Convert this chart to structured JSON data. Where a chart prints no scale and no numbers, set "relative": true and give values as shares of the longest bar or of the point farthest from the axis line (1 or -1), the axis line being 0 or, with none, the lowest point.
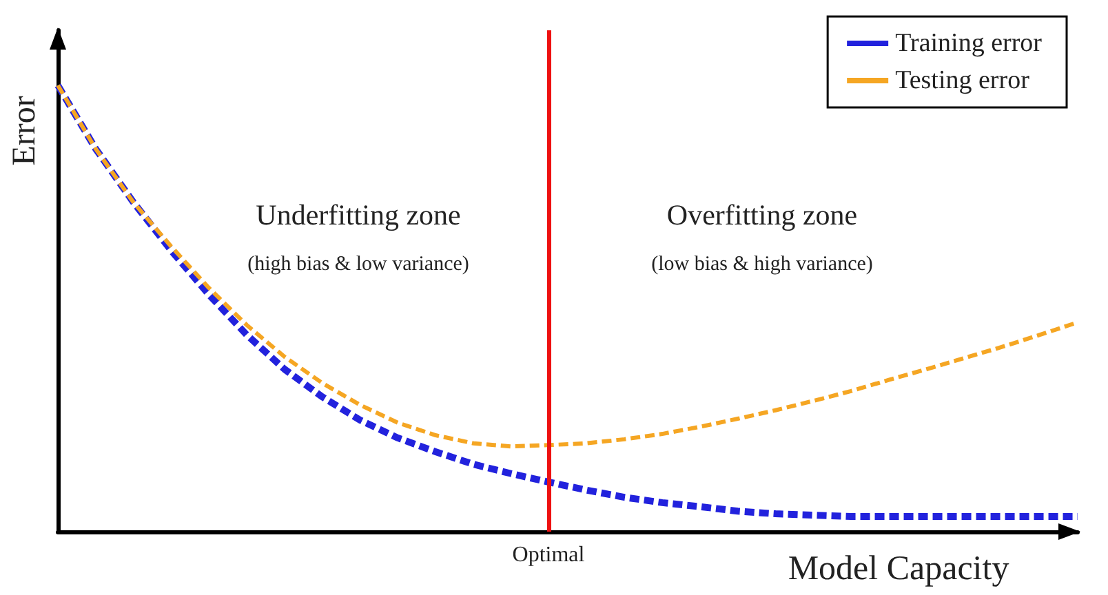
{
  "chart_data": {
    "type": "line",
    "relative": true,
    "xlabel": "Model Capacity",
    "ylabel": "Error",
    "categories": [
      null,
      null,
      null,
      null,
      null,
      null,
      null,
      null,
      null,
      null,
      null,
      null,
      null,
      null,
      null,
      null,
      null,
      null,
      null,
      null,
      null,
      null,
      null,
      null,
      null,
      null,
      null,
      null
    ],
    "series": [
      {
        "name": "Training error",
        "color": "#2222dd",
        "values": [
          1.0,
          0.858,
          0.738,
          0.63,
          0.531,
          0.441,
          0.364,
          0.302,
          0.25,
          0.21,
          0.179,
          0.151,
          0.13,
          0.111,
          0.093,
          0.077,
          0.065,
          0.056,
          0.046,
          0.04,
          0.037,
          0.034,
          0.034,
          0.034,
          0.034,
          0.034,
          0.034,
          0.034
        ]
      },
      {
        "name": "Testing error",
        "color": "#f5a623",
        "values": [
          1.0,
          0.858,
          0.738,
          0.639,
          0.546,
          0.463,
          0.392,
          0.333,
          0.284,
          0.244,
          0.216,
          0.198,
          0.191,
          0.194,
          0.198,
          0.207,
          0.219,
          0.235,
          0.253,
          0.272,
          0.293,
          0.315,
          0.34,
          0.364,
          0.389,
          0.414,
          0.441,
          0.469
        ]
      }
    ],
    "annotations": [
      "Underfitting zone",
      "(high bias & low variance)",
      "Overfitting zone",
      "(low bias & high variance)",
      "Optimal"
    ],
    "legend": "top right",
    "marker": "none",
    "line_style": "dashed"
  }
}
